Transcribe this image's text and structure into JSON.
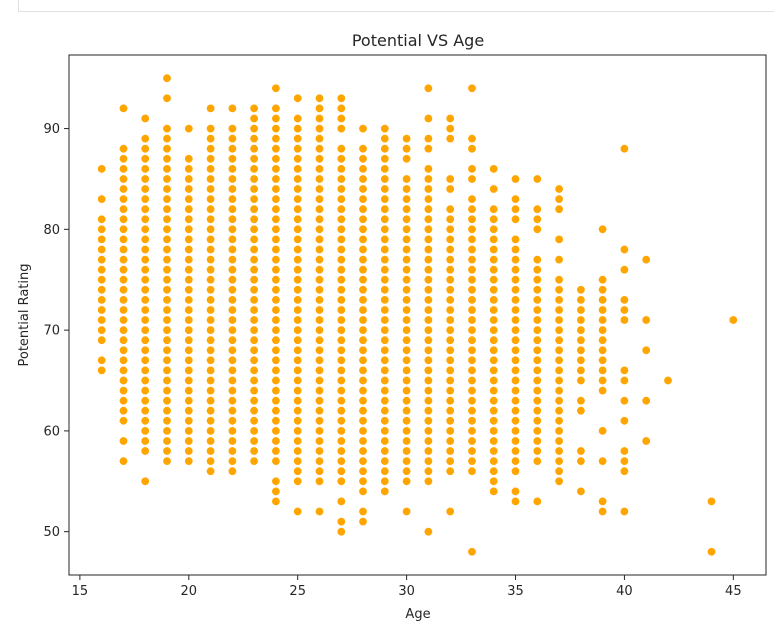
{
  "chart_data": {
    "type": "scatter",
    "title": "Potential VS Age",
    "xlabel": "Age",
    "ylabel": "Potential Rating",
    "xlim": [
      14.5,
      46.5
    ],
    "ylim": [
      45.7,
      97.3
    ],
    "xticks": [
      15,
      20,
      25,
      30,
      35,
      40,
      45
    ],
    "yticks": [
      50,
      60,
      70,
      80,
      90
    ],
    "point_color": "#FFA500",
    "grid": false,
    "legend": "none",
    "columns": [
      {
        "x": 16,
        "ranges": [
          [
            69,
            81
          ]
        ],
        "extra": [
          66,
          67,
          83,
          86
        ]
      },
      {
        "x": 17,
        "ranges": [
          [
            61,
            88
          ]
        ],
        "extra": [
          57,
          59,
          92
        ]
      },
      {
        "x": 18,
        "ranges": [
          [
            58,
            89
          ]
        ],
        "extra": [
          55,
          91
        ]
      },
      {
        "x": 19,
        "ranges": [
          [
            57,
            90
          ]
        ],
        "extra": [
          93,
          95
        ]
      },
      {
        "x": 20,
        "ranges": [
          [
            57,
            87
          ]
        ],
        "extra": [
          90
        ]
      },
      {
        "x": 21,
        "ranges": [
          [
            56,
            90
          ]
        ],
        "extra": [
          92
        ]
      },
      {
        "x": 22,
        "ranges": [
          [
            56,
            90
          ]
        ],
        "extra": [
          92
        ]
      },
      {
        "x": 23,
        "ranges": [
          [
            57,
            92
          ]
        ],
        "extra": []
      },
      {
        "x": 24,
        "ranges": [
          [
            57,
            92
          ]
        ],
        "extra": [
          53,
          54,
          55,
          94
        ]
      },
      {
        "x": 25,
        "ranges": [
          [
            55,
            91
          ]
        ],
        "extra": [
          52,
          93
        ]
      },
      {
        "x": 26,
        "ranges": [
          [
            55,
            93
          ]
        ],
        "extra": [
          52
        ]
      },
      {
        "x": 27,
        "ranges": [
          [
            55,
            88
          ]
        ],
        "extra": [
          50,
          51,
          53,
          90,
          91,
          92,
          93
        ]
      },
      {
        "x": 28,
        "ranges": [
          [
            54,
            88
          ]
        ],
        "extra": [
          51,
          52,
          90
        ]
      },
      {
        "x": 29,
        "ranges": [
          [
            54,
            90
          ]
        ],
        "extra": []
      },
      {
        "x": 30,
        "ranges": [
          [
            55,
            85
          ]
        ],
        "extra": [
          52,
          87,
          88,
          89
        ]
      },
      {
        "x": 31,
        "ranges": [
          [
            55,
            86
          ]
        ],
        "extra": [
          50,
          88,
          89,
          91,
          94
        ]
      },
      {
        "x": 32,
        "ranges": [
          [
            56,
            82
          ]
        ],
        "extra": [
          52,
          84,
          85,
          89,
          90,
          91
        ]
      },
      {
        "x": 33,
        "ranges": [
          [
            56,
            83
          ]
        ],
        "extra": [
          48,
          85,
          86,
          88,
          89,
          94
        ]
      },
      {
        "x": 34,
        "ranges": [
          [
            55,
            82
          ]
        ],
        "extra": [
          54,
          84,
          86
        ]
      },
      {
        "x": 35,
        "ranges": [
          [
            57,
            79
          ]
        ],
        "extra": [
          53,
          54,
          56,
          81,
          82,
          83,
          85
        ]
      },
      {
        "x": 36,
        "ranges": [
          [
            57,
            77
          ]
        ],
        "extra": [
          53,
          80,
          81,
          82,
          85
        ]
      },
      {
        "x": 37,
        "ranges": [
          [
            55,
            75
          ]
        ],
        "extra": [
          77,
          79,
          82,
          83,
          84
        ]
      },
      {
        "x": 38,
        "ranges": [
          [
            65,
            74
          ]
        ],
        "extra": [
          54,
          57,
          58,
          62,
          63
        ]
      },
      {
        "x": 39,
        "ranges": [
          [
            66,
            75
          ]
        ],
        "extra": [
          52,
          53,
          57,
          60,
          64,
          65,
          80
        ]
      },
      {
        "x": 40,
        "ranges": [],
        "extra": [
          52,
          56,
          57,
          58,
          61,
          63,
          65,
          66,
          71,
          72,
          73,
          76,
          78,
          88
        ]
      },
      {
        "x": 41,
        "ranges": [],
        "extra": [
          59,
          63,
          68,
          71,
          77
        ]
      },
      {
        "x": 42,
        "ranges": [],
        "extra": [
          65
        ]
      },
      {
        "x": 44,
        "ranges": [],
        "extra": [
          48,
          53
        ]
      },
      {
        "x": 45,
        "ranges": [],
        "extra": [
          71
        ]
      }
    ]
  }
}
